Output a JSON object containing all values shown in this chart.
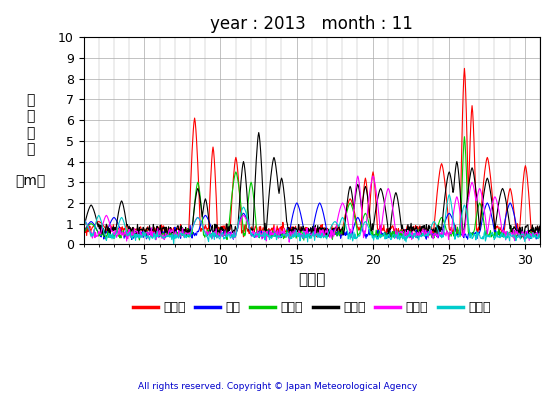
{
  "title": "year : 2013   month : 11",
  "xlabel": "（日）",
  "ylabel": "有\n義\n波\n高\n\n（m）",
  "xlim": [
    1,
    30
  ],
  "ylim": [
    0,
    10
  ],
  "yticks": [
    0,
    1,
    2,
    3,
    4,
    5,
    6,
    7,
    8,
    9,
    10
  ],
  "xticks": [
    5,
    10,
    15,
    20,
    25,
    30
  ],
  "copyright": "All rights reserved. Copyright © Japan Meteorological Agency",
  "legend": [
    {
      "label": "上ノ国",
      "color": "#ff0000"
    },
    {
      "label": "唐桑",
      "color": "#0000ff"
    },
    {
      "label": "石廊崎",
      "color": "#00cc00"
    },
    {
      "label": "経ヶ岬",
      "color": "#000000"
    },
    {
      "label": "生月島",
      "color": "#ff00ff"
    },
    {
      "label": "屋久島",
      "color": "#00cccc"
    }
  ],
  "background_color": "#ffffff",
  "grid_color": "#aaaaaa"
}
